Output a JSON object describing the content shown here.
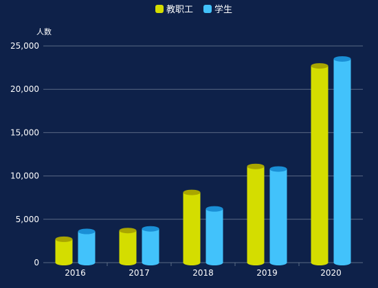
{
  "chart_data": {
    "type": "bar",
    "title": "",
    "xlabel": "",
    "ylabel": "人数",
    "categories": [
      "2016",
      "2017",
      "2018",
      "2019",
      "2020"
    ],
    "series": [
      {
        "name": "教职工",
        "color": "#d4dd00",
        "top_color": "#a9a600",
        "values": [
          2700,
          3700,
          8100,
          11100,
          22700
        ]
      },
      {
        "name": "学生",
        "color": "#42c2fb",
        "top_color": "#1a8fd6",
        "values": [
          3600,
          3900,
          6200,
          10800,
          23500
        ]
      }
    ],
    "ylim": [
      0,
      25000
    ],
    "yticks": [
      0,
      5000,
      10000,
      15000,
      20000,
      25000
    ],
    "ytick_labels": [
      "0",
      "5,000",
      "10,000",
      "15,000",
      "20,000",
      "25,000"
    ],
    "grid": true,
    "legend_position": "top-center",
    "background_color": "#0e2149",
    "grid_color": "#5b6a85"
  }
}
